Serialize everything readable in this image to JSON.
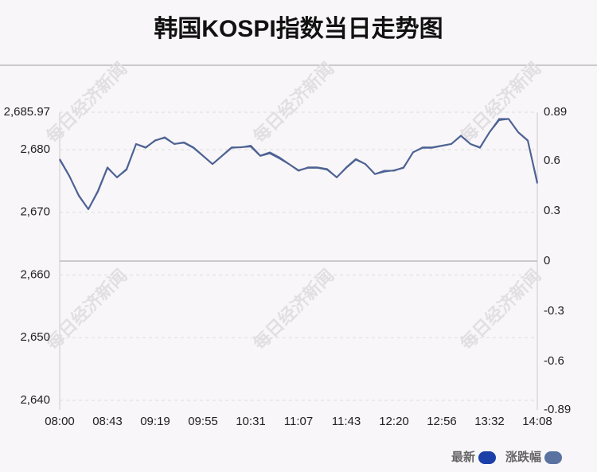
{
  "chart_data": {
    "type": "line",
    "title": "韩国KOSPI指数当日走势图",
    "watermark": "每日经济新闻",
    "categories": [
      "08:00",
      null,
      null,
      null,
      null,
      "08:43",
      null,
      null,
      null,
      null,
      "09:19",
      null,
      null,
      null,
      null,
      "09:55",
      null,
      null,
      null,
      null,
      "10:31",
      null,
      null,
      null,
      null,
      "11:07",
      null,
      null,
      null,
      null,
      "11:43",
      null,
      null,
      null,
      null,
      "12:20",
      null,
      null,
      null,
      null,
      "12:56",
      null,
      null,
      null,
      null,
      "13:32",
      null,
      null,
      null,
      null,
      "14:08"
    ],
    "series": [
      {
        "name": "最新",
        "color": "#1a3fa8",
        "line_color": "#4e6394",
        "values": [
          2678.4,
          2675.8,
          2672.7,
          2670.5,
          2673.3,
          2677.1,
          2675.6,
          2676.8,
          2680.9,
          2680.3,
          2681.5,
          2681.9,
          2680.9,
          2681.1,
          2680.3,
          2679.0,
          2677.7,
          2679.0,
          2680.3,
          2680.4,
          2680.5,
          2679.0,
          2679.4,
          2678.6,
          2677.7,
          2676.7,
          2677.1,
          2677.1,
          2676.8,
          2675.6,
          2677.1,
          2678.4,
          2677.7,
          2676.1,
          2676.5,
          2676.7,
          2677.1,
          2679.6,
          2680.3,
          2680.3,
          2680.6,
          2680.9,
          2682.2,
          2680.9,
          2680.3,
          2682.8,
          2684.7,
          2684.9,
          2682.8,
          2681.5,
          2674.6
        ]
      },
      {
        "name": "涨跌幅",
        "color": "#5a72a0",
        "line_color": "#4e6394",
        "axis": "y2",
        "values": [
          0.61,
          0.51,
          0.39,
          0.31,
          0.42,
          0.56,
          0.5,
          0.55,
          0.7,
          0.68,
          0.72,
          0.74,
          0.7,
          0.71,
          0.68,
          0.63,
          0.58,
          0.63,
          0.68,
          0.68,
          0.69,
          0.63,
          0.65,
          0.62,
          0.58,
          0.54,
          0.56,
          0.56,
          0.55,
          0.5,
          0.56,
          0.61,
          0.58,
          0.52,
          0.54,
          0.54,
          0.56,
          0.65,
          0.68,
          0.68,
          0.69,
          0.7,
          0.75,
          0.7,
          0.68,
          0.77,
          0.85,
          0.85,
          0.77,
          0.72,
          0.47
        ]
      }
    ],
    "ylim": [
      2638.48,
      2685.97
    ],
    "yticks": [
      {
        "value": 2640,
        "label": "2,640"
      },
      {
        "value": 2650,
        "label": "2,650"
      },
      {
        "value": 2660,
        "label": "2,660"
      },
      {
        "value": 2670,
        "label": "2,670"
      },
      {
        "value": 2680,
        "label": "2,680"
      },
      {
        "value": 2685.97,
        "label": "2,685.97"
      }
    ],
    "y2lim": [
      -0.89,
      0.89
    ],
    "y2ticks": [
      0.89,
      0.6,
      0.3,
      0,
      -0.3,
      -0.6,
      -0.89
    ],
    "grid": true
  }
}
